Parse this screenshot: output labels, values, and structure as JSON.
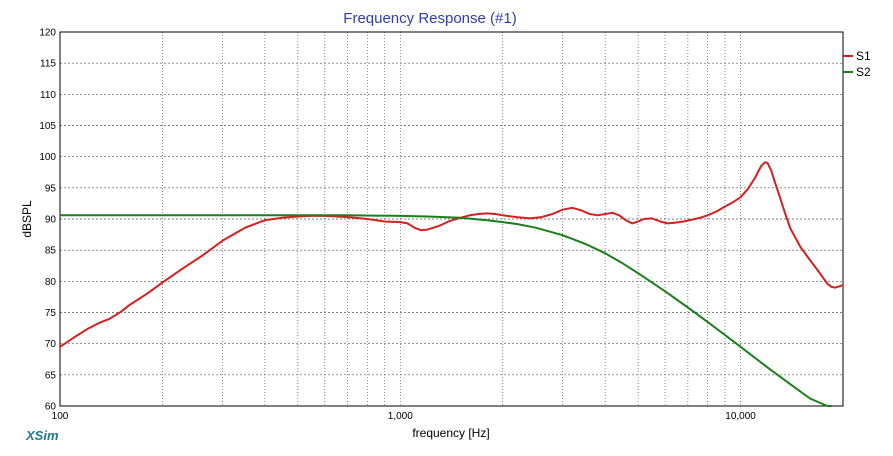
{
  "chart_data": {
    "type": "line",
    "title": "Frequency Response (#1)",
    "xlabel": "frequency [Hz]",
    "ylabel": "dBSPL",
    "xscale": "log",
    "xlim": [
      100,
      20000
    ],
    "ylim": [
      60,
      120
    ],
    "yticks": [
      60,
      65,
      70,
      75,
      80,
      85,
      90,
      95,
      100,
      105,
      110,
      115,
      120
    ],
    "xtick_labels": [
      {
        "value": 100,
        "label": "100"
      },
      {
        "value": 1000,
        "label": "1,000"
      },
      {
        "value": 10000,
        "label": "10,000"
      }
    ],
    "grid": true,
    "legend_position": "top-right",
    "series": [
      {
        "name": "S1",
        "color": "#d42020",
        "x": [
          100,
          110,
          120,
          130,
          140,
          150,
          160,
          180,
          200,
          230,
          260,
          300,
          350,
          400,
          450,
          500,
          550,
          600,
          650,
          700,
          800,
          900,
          1000,
          1050,
          1100,
          1150,
          1200,
          1300,
          1400,
          1500,
          1600,
          1700,
          1800,
          1900,
          2000,
          2200,
          2400,
          2600,
          2800,
          3000,
          3200,
          3400,
          3600,
          3800,
          4000,
          4200,
          4400,
          4600,
          4800,
          5000,
          5200,
          5500,
          5800,
          6100,
          6400,
          6800,
          7200,
          7600,
          8000,
          8500,
          9000,
          9500,
          10000,
          10500,
          11000,
          11500,
          11800,
          12000,
          12300,
          12600,
          13000,
          13500,
          14000,
          15000,
          16000,
          17000,
          18000,
          18500,
          19000,
          19500,
          20000
        ],
        "values": [
          69.5,
          71.0,
          72.3,
          73.3,
          74.0,
          75.0,
          76.2,
          78.0,
          79.8,
          82.1,
          84.0,
          86.5,
          88.6,
          89.8,
          90.2,
          90.4,
          90.5,
          90.5,
          90.4,
          90.3,
          90.0,
          89.6,
          89.5,
          89.3,
          88.6,
          88.2,
          88.3,
          88.9,
          89.7,
          90.2,
          90.6,
          90.8,
          90.9,
          90.8,
          90.6,
          90.3,
          90.1,
          90.3,
          90.8,
          91.5,
          91.8,
          91.4,
          90.8,
          90.6,
          90.8,
          91.0,
          90.6,
          89.8,
          89.3,
          89.6,
          90.0,
          90.1,
          89.6,
          89.3,
          89.4,
          89.6,
          89.9,
          90.2,
          90.6,
          91.2,
          92.0,
          92.7,
          93.5,
          94.8,
          96.5,
          98.5,
          99.1,
          99.0,
          97.8,
          96.0,
          93.8,
          91.0,
          88.5,
          85.5,
          83.4,
          81.5,
          79.6,
          79.1,
          79.0,
          79.2,
          79.4
        ]
      },
      {
        "name": "S2",
        "color": "#1a7f1a",
        "x": [
          100,
          200,
          300,
          500,
          700,
          1000,
          1200,
          1500,
          1800,
          2000,
          2200,
          2500,
          3000,
          3500,
          4000,
          4500,
          5000,
          6000,
          7000,
          8000,
          10000,
          12000,
          14000,
          16000,
          18000,
          18500
        ],
        "values": [
          90.6,
          90.6,
          90.6,
          90.6,
          90.6,
          90.5,
          90.4,
          90.2,
          89.8,
          89.5,
          89.2,
          88.6,
          87.4,
          86.0,
          84.5,
          82.9,
          81.3,
          78.4,
          75.8,
          73.5,
          69.5,
          66.2,
          63.5,
          61.2,
          59.7,
          59.5
        ]
      }
    ],
    "brand_mark": "XSim"
  }
}
